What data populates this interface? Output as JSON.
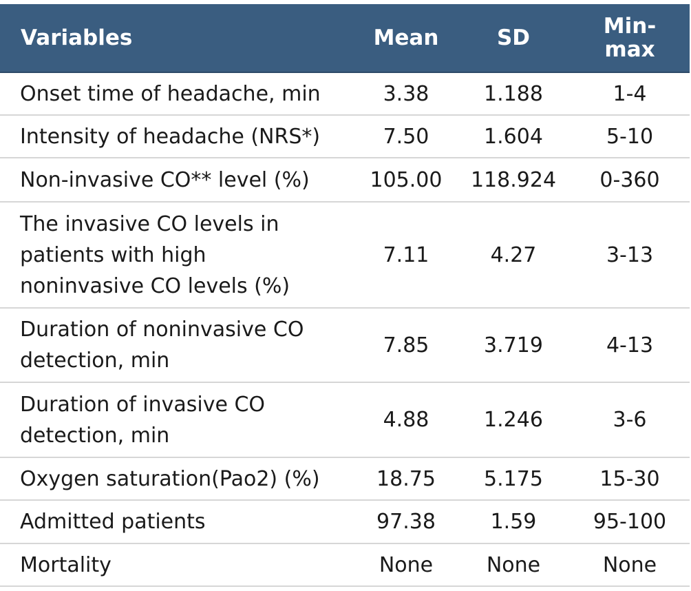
{
  "table": {
    "headers": {
      "variables": "Variables",
      "mean": "Mean",
      "sd": "SD",
      "minmax_line1": "Min-",
      "minmax_line2": "max"
    },
    "rows": [
      {
        "variable": [
          "Onset time of headache, min"
        ],
        "mean": "3.38",
        "sd": "1.188",
        "minmax": "1-4"
      },
      {
        "variable": [
          "Intensity of headache (NRS*)"
        ],
        "mean": "7.50",
        "sd": "1.604",
        "minmax": "5-10"
      },
      {
        "variable": [
          "Non-invasive CO** level (%)"
        ],
        "mean": "105.00",
        "sd": "118.924",
        "minmax": "0-360"
      },
      {
        "variable": [
          "The invasive CO levels in",
          "patients with high",
          "noninvasive CO levels (%)"
        ],
        "mean": "7.11",
        "sd": "4.27",
        "minmax": "3-13"
      },
      {
        "variable": [
          "Duration of noninvasive CO",
          "detection, min"
        ],
        "mean": "7.85",
        "sd": "3.719",
        "minmax": "4-13"
      },
      {
        "variable": [
          "Duration of invasive CO",
          "detection, min"
        ],
        "mean": "4.88",
        "sd": "1.246",
        "minmax": "3-6"
      },
      {
        "variable": [
          "Oxygen saturation(Pao2) (%)"
        ],
        "mean": "18.75",
        "sd": "5.175",
        "minmax": "15-30"
      },
      {
        "variable": [
          "Admitted patients"
        ],
        "mean": "97.38",
        "sd": "1.59",
        "minmax": "95-100"
      },
      {
        "variable": [
          "Mortality"
        ],
        "mean": "None",
        "sd": "None",
        "minmax": "None"
      }
    ]
  }
}
